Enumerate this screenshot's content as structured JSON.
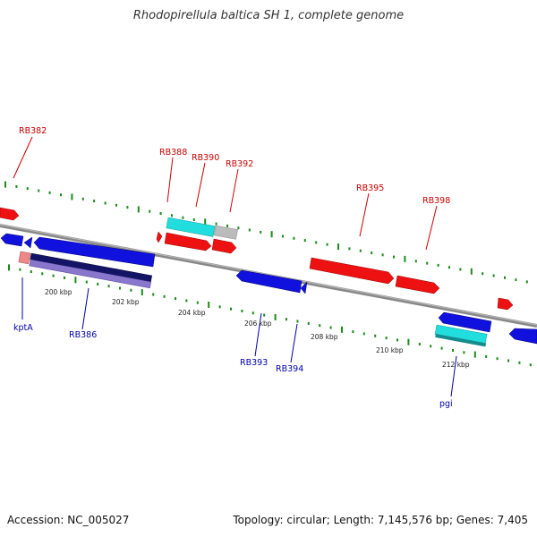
{
  "title": "Rhodopirellula baltica SH 1, complete genome",
  "accession": "Accession: NC_005027",
  "summary": "Topology: circular; Length: 7,145,576 bp; Genes: 7,405",
  "colors": {
    "backbone": "#888888",
    "tick": "#1a8a1a",
    "forward_gene": "#ee1111",
    "reverse_gene": "#1111dd",
    "cyan_feature": "#22dddd",
    "gray_feature": "#bbbbbb",
    "navy_feature": "#141466",
    "lavender_feature": "#8877cc",
    "pink_feature": "#ee8888",
    "forward_label": "#cc0000",
    "reverse_label": "#0000aa"
  },
  "scale_labels": [
    "200 kbp",
    "202 kbp",
    "204 kbp",
    "206 kbp",
    "208 kbp",
    "210 kbp",
    "212 kbp"
  ],
  "forward_labels": [
    "RB382",
    "RB388",
    "RB390",
    "RB392",
    "RB395",
    "RB398"
  ],
  "reverse_labels": [
    "kptA",
    "RB386",
    "RB393",
    "RB394",
    "pgi"
  ]
}
